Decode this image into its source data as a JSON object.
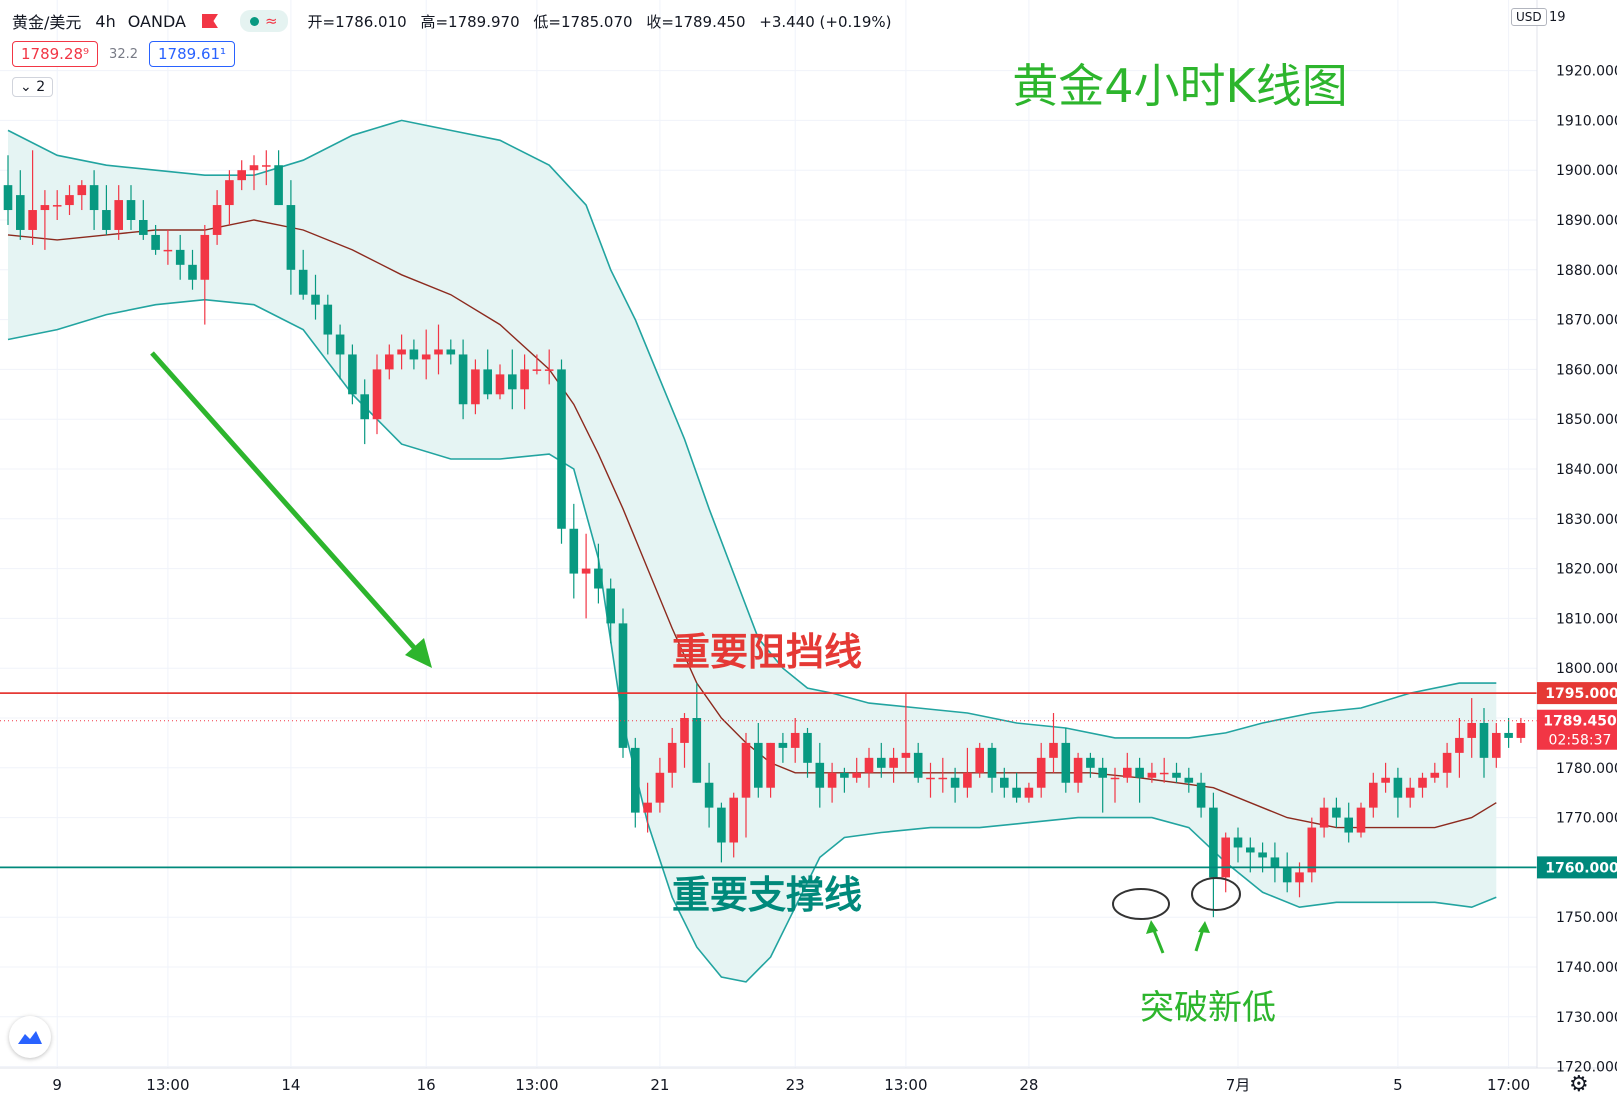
{
  "header": {
    "symbol": "黄金/美元",
    "timeframe": "4h",
    "source": "OANDA",
    "open_label": "开",
    "open": "=1786.010",
    "high_label": "高",
    "high": "=1789.970",
    "low_label": "低",
    "low": "=1785.070",
    "close_label": "收",
    "close": "=1789.450",
    "change": "+3.440 (+0.19%)",
    "bid": "1789.28⁹",
    "spread": "32.2",
    "ask": "1789.61¹",
    "indicator_count": "2",
    "currency": "USD"
  },
  "colors": {
    "up": "#f23645",
    "down": "#089981",
    "band_line": "#22a4a0",
    "band_fill": "#e5f4f3",
    "basis": "#8c2a1e",
    "resistance": "#e53935",
    "support": "#00897b",
    "annotation_green": "#2db52d"
  },
  "chart_data": {
    "type": "candlestick",
    "title": "黄金4小时K线图",
    "y_axis": {
      "range": [
        1716,
        1932
      ],
      "ticks": [
        "1720.000",
        "1730.000",
        "1740.000",
        "1750.000",
        "1760.000",
        "1770.000",
        "1780.000",
        "1790.000",
        "1800.000",
        "1810.000",
        "1820.000",
        "1830.000",
        "1840.000",
        "1850.000",
        "1860.000",
        "1870.000",
        "1880.000",
        "1890.000",
        "1900.000",
        "1910.000",
        "1920.000"
      ],
      "top_partial_tick": "19"
    },
    "x_axis": {
      "labels": [
        "9",
        "13:00",
        "14",
        "16",
        "13:00",
        "21",
        "23",
        "13:00",
        "28",
        "7月",
        "5",
        "17:00"
      ],
      "label_bar_index": [
        4,
        13,
        23,
        34,
        43,
        53,
        64,
        73,
        83,
        100,
        113,
        122
      ]
    },
    "horizontal_lines": [
      {
        "label": "重要阻挡线",
        "price": 1795.0,
        "price_label": "1795.000",
        "color_key": "resistance"
      },
      {
        "label": "重要支撑线",
        "price": 1760.0,
        "price_label": "1760.000",
        "color_key": "support"
      }
    ],
    "last_price": {
      "price": 1789.45,
      "label": "1789.450",
      "countdown": "02:58:37"
    },
    "annotations": {
      "new_low_text": "突破新低",
      "new_low_circles_near_price": [
        1751.5,
        1754.0
      ]
    },
    "candles": [
      [
        1897,
        1903,
        1889,
        1892
      ],
      [
        1895,
        1900,
        1886,
        1888
      ],
      [
        1888,
        1904,
        1885,
        1892
      ],
      [
        1892,
        1896,
        1884,
        1893
      ],
      [
        1893,
        1896,
        1890,
        1893
      ],
      [
        1893,
        1897,
        1891,
        1895
      ],
      [
        1895,
        1898,
        1892,
        1897
      ],
      [
        1897,
        1900,
        1888,
        1892
      ],
      [
        1892,
        1897,
        1887,
        1888
      ],
      [
        1888,
        1897,
        1886,
        1894
      ],
      [
        1894,
        1897,
        1888,
        1890
      ],
      [
        1890,
        1894,
        1886,
        1887
      ],
      [
        1887,
        1889,
        1883,
        1884
      ],
      [
        1884,
        1888,
        1881,
        1884
      ],
      [
        1884,
        1887,
        1878,
        1881
      ],
      [
        1881,
        1884,
        1876,
        1878
      ],
      [
        1878,
        1889,
        1869,
        1887
      ],
      [
        1887,
        1896,
        1885,
        1893
      ],
      [
        1893,
        1900,
        1889,
        1898
      ],
      [
        1898,
        1902,
        1896,
        1900
      ],
      [
        1900,
        1903,
        1896,
        1901
      ],
      [
        1901,
        1904,
        1897,
        1901
      ],
      [
        1901,
        1904,
        1893,
        1893
      ],
      [
        1893,
        1898,
        1875,
        1880
      ],
      [
        1880,
        1884,
        1874,
        1875
      ],
      [
        1875,
        1879,
        1870,
        1873
      ],
      [
        1873,
        1875,
        1863,
        1867
      ],
      [
        1867,
        1869,
        1858,
        1863
      ],
      [
        1863,
        1865,
        1853,
        1855
      ],
      [
        1855,
        1858,
        1845,
        1850
      ],
      [
        1850,
        1863,
        1847,
        1860
      ],
      [
        1860,
        1865,
        1858,
        1863
      ],
      [
        1863,
        1867,
        1860,
        1864
      ],
      [
        1864,
        1866,
        1860,
        1862
      ],
      [
        1862,
        1868,
        1858,
        1863
      ],
      [
        1863,
        1869,
        1859,
        1864
      ],
      [
        1864,
        1866,
        1861,
        1863
      ],
      [
        1863,
        1866,
        1850,
        1853
      ],
      [
        1853,
        1862,
        1851,
        1860
      ],
      [
        1860,
        1864,
        1854,
        1855
      ],
      [
        1855,
        1861,
        1854,
        1859
      ],
      [
        1859,
        1864,
        1852,
        1856
      ],
      [
        1856,
        1863,
        1852,
        1860
      ],
      [
        1860,
        1863,
        1859,
        1860
      ],
      [
        1860,
        1864,
        1857,
        1860
      ],
      [
        1860,
        1862,
        1825,
        1828
      ],
      [
        1828,
        1833,
        1814,
        1819
      ],
      [
        1819,
        1827,
        1810,
        1820
      ],
      [
        1820,
        1825,
        1813,
        1816
      ],
      [
        1816,
        1818,
        1805,
        1809
      ],
      [
        1809,
        1812,
        1782,
        1784
      ],
      [
        1784,
        1786,
        1768,
        1771
      ],
      [
        1771,
        1777,
        1767,
        1773
      ],
      [
        1773,
        1782,
        1771,
        1779
      ],
      [
        1779,
        1788,
        1776,
        1785
      ],
      [
        1785,
        1791,
        1780,
        1790
      ],
      [
        1790,
        1797,
        1777,
        1777
      ],
      [
        1777,
        1781,
        1768,
        1772
      ],
      [
        1772,
        1773,
        1761,
        1765
      ],
      [
        1765,
        1775,
        1762,
        1774
      ],
      [
        1774,
        1787,
        1766,
        1785
      ],
      [
        1785,
        1789,
        1774,
        1776
      ],
      [
        1776,
        1785,
        1774,
        1785
      ],
      [
        1785,
        1787,
        1781,
        1784
      ],
      [
        1784,
        1790,
        1781,
        1787
      ],
      [
        1787,
        1788,
        1778,
        1781
      ],
      [
        1781,
        1785,
        1772,
        1776
      ],
      [
        1776,
        1781,
        1773,
        1779
      ],
      [
        1779,
        1780,
        1775,
        1778
      ],
      [
        1778,
        1782,
        1777,
        1779
      ],
      [
        1779,
        1784,
        1776,
        1782
      ],
      [
        1782,
        1785,
        1778,
        1780
      ],
      [
        1780,
        1784,
        1777,
        1782
      ],
      [
        1782,
        1795,
        1779,
        1783
      ],
      [
        1783,
        1785,
        1777,
        1778
      ],
      [
        1778,
        1781,
        1774,
        1778
      ],
      [
        1778,
        1782,
        1775,
        1778
      ],
      [
        1778,
        1780,
        1773,
        1776
      ],
      [
        1776,
        1784,
        1774,
        1779
      ],
      [
        1779,
        1785,
        1778,
        1784
      ],
      [
        1784,
        1785,
        1775,
        1778
      ],
      [
        1778,
        1780,
        1774,
        1776
      ],
      [
        1776,
        1779,
        1773,
        1774
      ],
      [
        1774,
        1777,
        1773,
        1776
      ],
      [
        1776,
        1785,
        1774,
        1782
      ],
      [
        1782,
        1791,
        1779,
        1785
      ],
      [
        1785,
        1788,
        1775,
        1777
      ],
      [
        1777,
        1783,
        1775,
        1782
      ],
      [
        1782,
        1783,
        1778,
        1780
      ],
      [
        1780,
        1782,
        1771,
        1778
      ],
      [
        1778,
        1780,
        1773,
        1778
      ],
      [
        1778,
        1783,
        1777,
        1780
      ],
      [
        1780,
        1782,
        1773,
        1778
      ],
      [
        1778,
        1781,
        1777,
        1779
      ],
      [
        1779,
        1782,
        1777,
        1779
      ],
      [
        1779,
        1781,
        1777,
        1778
      ],
      [
        1778,
        1780,
        1775,
        1777
      ],
      [
        1777,
        1779,
        1770,
        1772
      ],
      [
        1772,
        1775,
        1750,
        1758
      ],
      [
        1758,
        1767,
        1755,
        1766
      ],
      [
        1766,
        1768,
        1761,
        1764
      ],
      [
        1764,
        1766,
        1759,
        1763
      ],
      [
        1763,
        1765,
        1759,
        1762
      ],
      [
        1762,
        1765,
        1757,
        1760
      ],
      [
        1760,
        1763,
        1755,
        1757
      ],
      [
        1757,
        1761,
        1754,
        1759
      ],
      [
        1759,
        1770,
        1757,
        1768
      ],
      [
        1768,
        1774,
        1766,
        1772
      ],
      [
        1772,
        1774,
        1768,
        1770
      ],
      [
        1770,
        1773,
        1765,
        1767
      ],
      [
        1767,
        1773,
        1766,
        1772
      ],
      [
        1772,
        1779,
        1770,
        1777
      ],
      [
        1777,
        1781,
        1775,
        1778
      ],
      [
        1778,
        1780,
        1770,
        1774
      ],
      [
        1774,
        1778,
        1772,
        1776
      ],
      [
        1776,
        1779,
        1774,
        1778
      ],
      [
        1778,
        1781,
        1777,
        1779
      ],
      [
        1779,
        1785,
        1776,
        1783
      ],
      [
        1783,
        1790,
        1778,
        1786
      ],
      [
        1786,
        1794,
        1782,
        1789
      ],
      [
        1789,
        1792,
        1778,
        1782
      ],
      [
        1782,
        1789,
        1780,
        1787
      ],
      [
        1787,
        1790,
        1784,
        1786
      ],
      [
        1786,
        1790,
        1785,
        1789
      ]
    ],
    "bollinger": {
      "upper": [
        [
          0,
          1908
        ],
        [
          4,
          1903
        ],
        [
          8,
          1901
        ],
        [
          12,
          1900
        ],
        [
          16,
          1899
        ],
        [
          20,
          1899
        ],
        [
          24,
          1902
        ],
        [
          28,
          1907
        ],
        [
          32,
          1910
        ],
        [
          36,
          1908
        ],
        [
          40,
          1906
        ],
        [
          44,
          1901
        ],
        [
          47,
          1893
        ],
        [
          49,
          1880
        ],
        [
          51,
          1870
        ],
        [
          53,
          1858
        ],
        [
          55,
          1846
        ],
        [
          57,
          1832
        ],
        [
          59,
          1819
        ],
        [
          61,
          1806
        ],
        [
          63,
          1800
        ],
        [
          65,
          1796
        ],
        [
          67,
          1795
        ],
        [
          70,
          1793
        ],
        [
          74,
          1792
        ],
        [
          78,
          1791
        ],
        [
          82,
          1789
        ],
        [
          86,
          1788
        ],
        [
          90,
          1786
        ],
        [
          93,
          1786
        ],
        [
          96,
          1786
        ],
        [
          99,
          1787
        ],
        [
          102,
          1789
        ],
        [
          106,
          1791
        ],
        [
          110,
          1792
        ],
        [
          114,
          1795
        ],
        [
          118,
          1797
        ],
        [
          121,
          1797
        ]
      ],
      "lower": [
        [
          0,
          1866
        ],
        [
          4,
          1868
        ],
        [
          8,
          1871
        ],
        [
          12,
          1873
        ],
        [
          16,
          1874
        ],
        [
          20,
          1873
        ],
        [
          24,
          1868
        ],
        [
          28,
          1855
        ],
        [
          32,
          1845
        ],
        [
          36,
          1842
        ],
        [
          40,
          1842
        ],
        [
          44,
          1843
        ],
        [
          46,
          1840
        ],
        [
          48,
          1822
        ],
        [
          50,
          1789
        ],
        [
          52,
          1769
        ],
        [
          54,
          1754
        ],
        [
          56,
          1744
        ],
        [
          58,
          1738
        ],
        [
          60,
          1737
        ],
        [
          62,
          1742
        ],
        [
          64,
          1752
        ],
        [
          66,
          1762
        ],
        [
          68,
          1766
        ],
        [
          71,
          1767
        ],
        [
          75,
          1768
        ],
        [
          79,
          1768
        ],
        [
          83,
          1769
        ],
        [
          87,
          1770
        ],
        [
          90,
          1770
        ],
        [
          93,
          1770
        ],
        [
          96,
          1768
        ],
        [
          99,
          1761
        ],
        [
          102,
          1755
        ],
        [
          105,
          1752
        ],
        [
          108,
          1753
        ],
        [
          112,
          1753
        ],
        [
          116,
          1753
        ],
        [
          119,
          1752
        ],
        [
          121,
          1754
        ]
      ],
      "basis": [
        [
          0,
          1887
        ],
        [
          4,
          1886
        ],
        [
          8,
          1887
        ],
        [
          12,
          1888
        ],
        [
          16,
          1888
        ],
        [
          20,
          1890
        ],
        [
          24,
          1888
        ],
        [
          28,
          1884
        ],
        [
          32,
          1879
        ],
        [
          36,
          1875
        ],
        [
          40,
          1869
        ],
        [
          44,
          1860
        ],
        [
          46,
          1853
        ],
        [
          48,
          1843
        ],
        [
          50,
          1832
        ],
        [
          52,
          1820
        ],
        [
          54,
          1808
        ],
        [
          56,
          1797
        ],
        [
          58,
          1790
        ],
        [
          60,
          1785
        ],
        [
          62,
          1781
        ],
        [
          64,
          1779
        ],
        [
          68,
          1779
        ],
        [
          72,
          1779
        ],
        [
          76,
          1779
        ],
        [
          80,
          1779
        ],
        [
          84,
          1779
        ],
        [
          88,
          1779
        ],
        [
          92,
          1778
        ],
        [
          95,
          1777
        ],
        [
          98,
          1776
        ],
        [
          101,
          1773
        ],
        [
          104,
          1770
        ],
        [
          108,
          1768
        ],
        [
          112,
          1768
        ],
        [
          116,
          1768
        ],
        [
          119,
          1770
        ],
        [
          121,
          1773
        ]
      ]
    }
  }
}
